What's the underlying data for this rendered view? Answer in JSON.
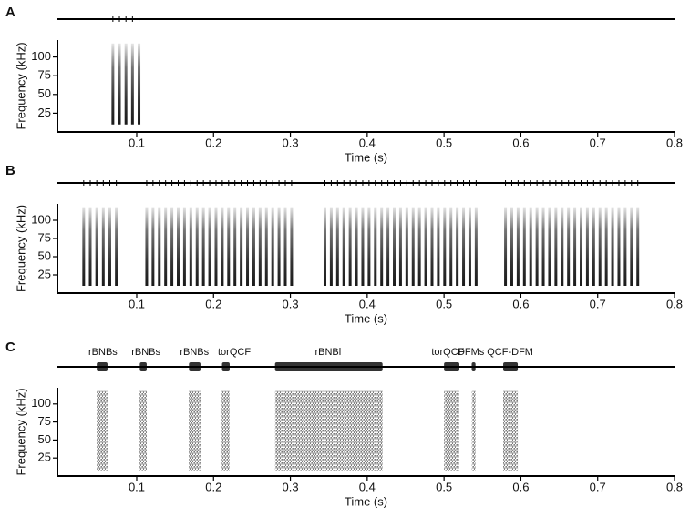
{
  "chart_data": [
    {
      "type": "spectrogram",
      "panel": "A",
      "xlabel": "Time (s)",
      "ylabel": "Frequency (kHz)",
      "xlim": [
        0,
        0.8
      ],
      "xticks": [
        0.1,
        0.2,
        0.3,
        0.4,
        0.5,
        0.6,
        0.7,
        0.8
      ],
      "ylim": [
        0,
        125
      ],
      "yticks": [
        25,
        50,
        75,
        100
      ],
      "bursts": [
        {
          "x": [
            0.069,
            0.106
          ],
          "y": [
            10,
            118
          ],
          "period": 0.0085
        }
      ]
    },
    {
      "type": "spectrogram",
      "panel": "B",
      "xlabel": "Time (s)",
      "ylabel": "Frequency (kHz)",
      "xlim": [
        0,
        0.8
      ],
      "xticks": [
        0.1,
        0.2,
        0.3,
        0.4,
        0.5,
        0.6,
        0.7,
        0.8
      ],
      "ylim": [
        0,
        125
      ],
      "yticks": [
        25,
        50,
        75,
        100
      ],
      "bursts": [
        {
          "x": [
            0.031,
            0.078
          ],
          "y": [
            10,
            118
          ],
          "period": 0.0085
        },
        {
          "x": [
            0.113,
            0.302
          ],
          "y": [
            10,
            118
          ],
          "period": 0.0082
        },
        {
          "x": [
            0.345,
            0.548
          ],
          "y": [
            10,
            118
          ],
          "period": 0.0082
        },
        {
          "x": [
            0.58,
            0.757
          ],
          "y": [
            10,
            118
          ],
          "period": 0.0082
        }
      ]
    },
    {
      "type": "spectrogram",
      "panel": "C",
      "xlabel": "Time (s)",
      "ylabel": "Frequency (kHz)",
      "xlim": [
        0,
        0.8
      ],
      "xticks": [
        0.1,
        0.2,
        0.3,
        0.4,
        0.5,
        0.6,
        0.7,
        0.8
      ],
      "ylim": [
        0,
        125
      ],
      "yticks": [
        25,
        50,
        75,
        100
      ],
      "bursts": [
        {
          "x": [
            0.048,
            0.062
          ],
          "y": [
            8,
            118
          ]
        },
        {
          "x": [
            0.104,
            0.113
          ],
          "y": [
            8,
            118
          ]
        },
        {
          "x": [
            0.168,
            0.183
          ],
          "y": [
            8,
            118
          ]
        },
        {
          "x": [
            0.211,
            0.221
          ],
          "y": [
            8,
            118
          ]
        },
        {
          "x": [
            0.28,
            0.42
          ],
          "y": [
            8,
            118
          ]
        },
        {
          "x": [
            0.5,
            0.52
          ],
          "y": [
            8,
            118
          ]
        },
        {
          "x": [
            0.536,
            0.541
          ],
          "y": [
            8,
            118
          ]
        },
        {
          "x": [
            0.577,
            0.596
          ],
          "y": [
            8,
            118
          ]
        }
      ],
      "annotations": [
        {
          "text": "rBNBs",
          "x": 0.056
        },
        {
          "text": "rBNBs",
          "x": 0.112
        },
        {
          "text": "rBNBs",
          "x": 0.175
        },
        {
          "text": "torQCF",
          "x": 0.227
        },
        {
          "text": "rBNBl",
          "x": 0.349
        },
        {
          "text": "torQCF",
          "x": 0.505
        },
        {
          "text": "DFMs",
          "x": 0.535
        },
        {
          "text": "QCF-DFM",
          "x": 0.586
        }
      ]
    }
  ]
}
